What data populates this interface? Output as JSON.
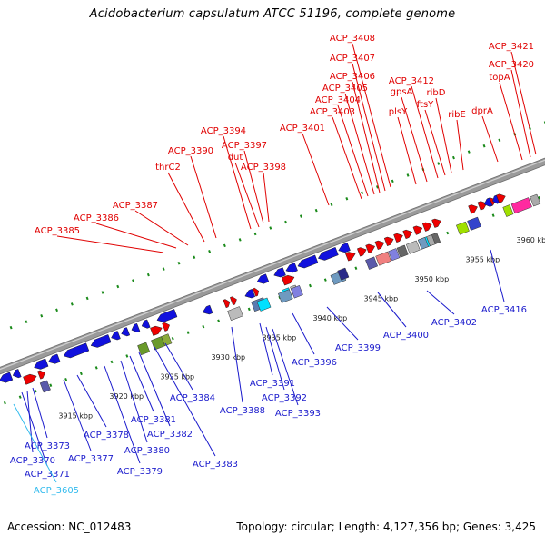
{
  "title": "Acidobacterium capsulatum ATCC 51196, complete genome",
  "footer": {
    "accession": "Accession: NC_012483",
    "topology": "Topology: circular; Length: 4,127,356 bp; Genes: 3,425"
  },
  "colors": {
    "forward_label": "#e00000",
    "reverse_label": "#1a1acc",
    "rna_label": "#33bbee",
    "backbone": "#9a9a9a",
    "tick": "#1a8a1a"
  },
  "scale_labels": [
    "3915 kbp",
    "3920 kbp",
    "3925 kbp",
    "3930 kbp",
    "3935 kbp",
    "3940 kbp",
    "3945 kbp",
    "3950 kbp",
    "3955 kbp",
    "3960 kbp"
  ],
  "top_labels": [
    "ACP_3408",
    "ACP_3407",
    "ACP_3406",
    "ACP_3405",
    "ACP_3404",
    "ACP_3403",
    "ACP_3412",
    "gpsA",
    "plsY",
    "ftsY",
    "ribD",
    "ribE",
    "dprA",
    "ACP_3421",
    "ACP_3420",
    "topA",
    "ACP_3401",
    "ACP_3394",
    "ACP_3390",
    "ACP_3397",
    "dut",
    "ACP_3398",
    "thrC2",
    "ACP_3387",
    "ACP_3386",
    "ACP_3385"
  ],
  "bottom_labels": [
    "ACP_3416",
    "ACP_3402",
    "ACP_3400",
    "ACP_3399",
    "ACP_3396",
    "ACP_3393",
    "ACP_3392",
    "ACP_3391",
    "ACP_3388",
    "ACP_3384",
    "ACP_3383",
    "ACP_3382",
    "ACP_3381",
    "ACP_3380",
    "ACP_3379",
    "ACP_3378",
    "ACP_3377",
    "ACP_3373",
    "ACP_3370",
    "ACP_3371",
    "ACP_3605"
  ]
}
